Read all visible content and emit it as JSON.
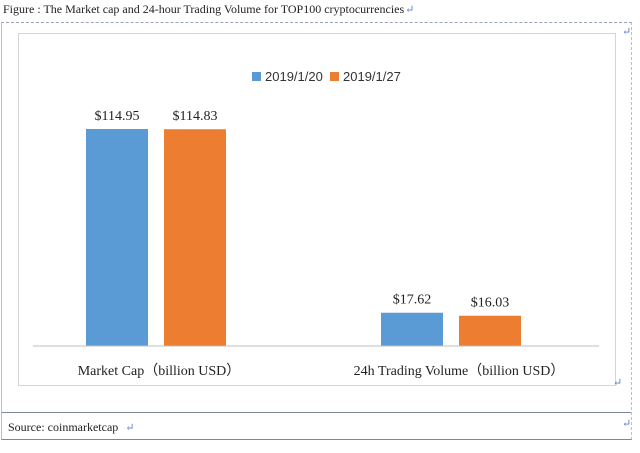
{
  "caption": "Figure : The Market cap and 24-hour Trading Volume for TOP100 cryptocurrencies",
  "source": "Source: coinmarketcap",
  "colors": {
    "series1": "#5b9bd5",
    "series2": "#ed7d31",
    "axis": "#bfbfbf"
  },
  "chart_data": {
    "type": "bar",
    "title": "",
    "categories": [
      "Market Cap（billion USD）",
      "24h Trading Volume（billion USD）"
    ],
    "series": [
      {
        "name": "2019/1/20",
        "values": [
          114.95,
          17.62
        ],
        "labels": [
          "$114.95",
          "$17.62"
        ]
      },
      {
        "name": "2019/1/27",
        "values": [
          114.83,
          16.03
        ],
        "labels": [
          "$114.83",
          "$16.03"
        ]
      }
    ],
    "ylim": [
      0,
      140
    ],
    "grid": false,
    "legend": "top-center"
  }
}
